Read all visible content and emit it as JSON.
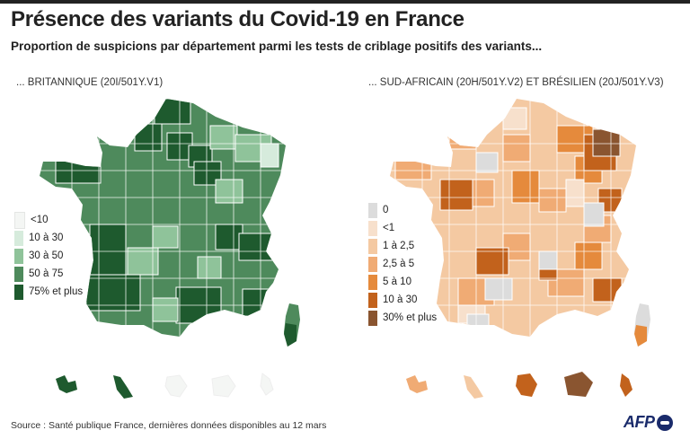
{
  "title": "Présence des variants du Covid-19 en France",
  "subtitle": "Proportion de suspicions par département parmi les tests de criblage positifs des variants...",
  "left_panel": {
    "label": "... BRITANNIQUE (20I/501Y.V1)",
    "legend": [
      {
        "label": "<10",
        "color": "#f4f6f4"
      },
      {
        "label": "10 à 30",
        "color": "#d6ebdc"
      },
      {
        "label": "30 à 50",
        "color": "#8fc39a"
      },
      {
        "label": "50 à 75",
        "color": "#4e8a5c"
      },
      {
        "label": "75% et plus",
        "color": "#1e5a2e"
      }
    ]
  },
  "right_panel": {
    "label": "... SUD-AFRICAIN (20H/501Y.V2) ET BRÉSILIEN (20J/501Y.V3)",
    "legend": [
      {
        "label": "0",
        "color": "#dcdcdc"
      },
      {
        "label": "<1",
        "color": "#f7e0cc"
      },
      {
        "label": "1 à 2,5",
        "color": "#f4c9a2"
      },
      {
        "label": "2,5 à 5",
        "color": "#f0ab74"
      },
      {
        "label": "5 à 10",
        "color": "#e58a3c"
      },
      {
        "label": "10 à 30",
        "color": "#c2621c"
      },
      {
        "label": "30% et plus",
        "color": "#8a5530"
      }
    ]
  },
  "source": "Source : Santé publique France, dernières données disponibles au 12 mars",
  "logo": "AFP",
  "logo_icon": "afp-dot-icon"
}
